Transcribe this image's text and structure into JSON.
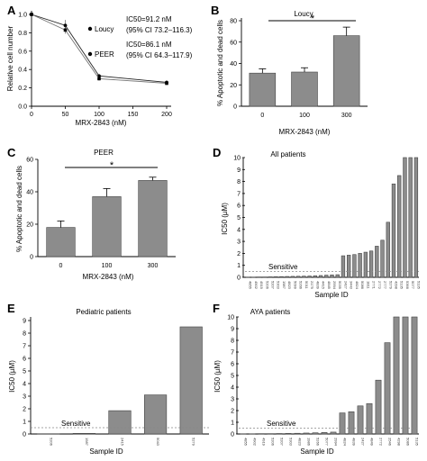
{
  "colors": {
    "bar": "#8c8c8c",
    "bar_stroke": "#444444",
    "axis": "#000000",
    "dashed": "#888888"
  },
  "panels": {
    "A": {
      "letter": "A",
      "ylabel": "Relative cell number",
      "xlabel": "MRX-2843 (nM)",
      "series_labels": [
        "Loucy",
        "PEER"
      ],
      "ic50_loucy": "IC50=91.2 nM",
      "ci_loucy": "(95% CI 73.2–116.3)",
      "ic50_peer": "IC50=86.1 nM",
      "ci_peer": "(95% CI 64.3–117.9)"
    },
    "B": {
      "letter": "B",
      "title": "Loucy",
      "ylabel": "% Apoptotic and dead cells",
      "xlabel": "MRX-2843 (nM)",
      "sig": "*"
    },
    "C": {
      "letter": "C",
      "title": "PEER",
      "ylabel": "% Apoptotic and dead cells",
      "xlabel": "MRX-2843 (nM)",
      "sig": "*"
    },
    "D": {
      "letter": "D",
      "title": "All patients",
      "ylabel": "IC50 (µM)",
      "xlabel": "Sample ID",
      "sensitive": "Sensitive"
    },
    "E": {
      "letter": "E",
      "title": "Pediatric patients",
      "ylabel": "IC50 (µM)",
      "xlabel": "Sample ID",
      "sensitive": "Sensitive"
    },
    "F": {
      "letter": "F",
      "title": "AYA patients",
      "ylabel": "IC50 (µM)",
      "xlabel": "Sample ID",
      "sensitive": "Sensitive"
    }
  },
  "chart_data": [
    {
      "panel": "A",
      "type": "line",
      "x": [
        0,
        50,
        100,
        200
      ],
      "xlim": [
        0,
        200
      ],
      "ylim": [
        0,
        1.0
      ],
      "xticks": [
        0,
        50,
        100,
        150,
        200
      ],
      "yticks": [
        0,
        0.2,
        0.4,
        0.6,
        0.8,
        1.0
      ],
      "series": [
        {
          "name": "Loucy",
          "values": [
            1.0,
            0.88,
            0.33,
            0.26
          ],
          "err": [
            0.02,
            0.06,
            0.02,
            0.02
          ]
        },
        {
          "name": "PEER",
          "values": [
            1.0,
            0.83,
            0.3,
            0.25
          ],
          "err": [
            0.02,
            0.04,
            0.02,
            0.02
          ]
        }
      ]
    },
    {
      "panel": "B",
      "type": "bar",
      "categories": [
        "0",
        "100",
        "300"
      ],
      "values": [
        31,
        32,
        66
      ],
      "err": [
        4,
        4,
        8
      ],
      "ylim": [
        0,
        80
      ],
      "yticks": [
        0,
        20,
        40,
        60,
        80
      ]
    },
    {
      "panel": "C",
      "type": "bar",
      "categories": [
        "0",
        "100",
        "300"
      ],
      "values": [
        18,
        37,
        47
      ],
      "err": [
        4,
        5,
        2
      ],
      "ylim": [
        0,
        60
      ],
      "yticks": [
        0,
        20,
        40,
        60
      ]
    },
    {
      "panel": "D",
      "type": "bar",
      "ylim": [
        0,
        10
      ],
      "yticks": [
        0,
        1,
        2,
        3,
        4,
        5,
        6,
        7,
        8,
        9,
        10
      ],
      "sensitive_threshold": 0.5,
      "categories": [
        "4855",
        "4902",
        "4919",
        "5206",
        "5207",
        "5303",
        "1987",
        "4823",
        "5099",
        "5266",
        "5011",
        "2179",
        "4839",
        "4415",
        "4849",
        "2994",
        "5039",
        "2427",
        "3443",
        "4824",
        "5086",
        "1811",
        "2771",
        "2772",
        "2777",
        "5279",
        "4298",
        "5135",
        "5366",
        "5077",
        "5135"
      ],
      "values": [
        0.02,
        0.02,
        0.03,
        0.03,
        0.04,
        0.05,
        0.06,
        0.07,
        0.08,
        0.09,
        0.1,
        0.11,
        0.13,
        0.15,
        0.18,
        0.2,
        0.22,
        1.8,
        1.85,
        1.9,
        2.0,
        2.1,
        2.2,
        2.6,
        3.1,
        4.6,
        7.8,
        8.5,
        10,
        10,
        10
      ]
    },
    {
      "panel": "E",
      "type": "bar",
      "ylim": [
        0,
        9
      ],
      "yticks": [
        0,
        1,
        2,
        3,
        4,
        5,
        6,
        7,
        8,
        9
      ],
      "sensitive_threshold": 0.5,
      "categories": [
        "5206",
        "1987",
        "2415",
        "5043",
        "5279"
      ],
      "values": [
        0.02,
        0.05,
        1.85,
        3.1,
        8.5
      ]
    },
    {
      "panel": "F",
      "type": "bar",
      "ylim": [
        0,
        10
      ],
      "yticks": [
        0,
        1,
        2,
        3,
        4,
        5,
        6,
        7,
        8,
        9,
        10
      ],
      "sensitive_threshold": 0.5,
      "categories": [
        "4855",
        "4902",
        "4919",
        "5206",
        "5207",
        "5303",
        "4823",
        "1986",
        "5266",
        "5077",
        "2994",
        "4824",
        "4839",
        "2427",
        "4849",
        "2772",
        "2546",
        "4298",
        "5086",
        "5135"
      ],
      "values": [
        0.02,
        0.02,
        0.03,
        0.03,
        0.04,
        0.05,
        0.06,
        0.08,
        0.1,
        0.13,
        0.16,
        1.8,
        1.9,
        2.4,
        2.6,
        4.6,
        7.8,
        10,
        10,
        10
      ]
    }
  ]
}
